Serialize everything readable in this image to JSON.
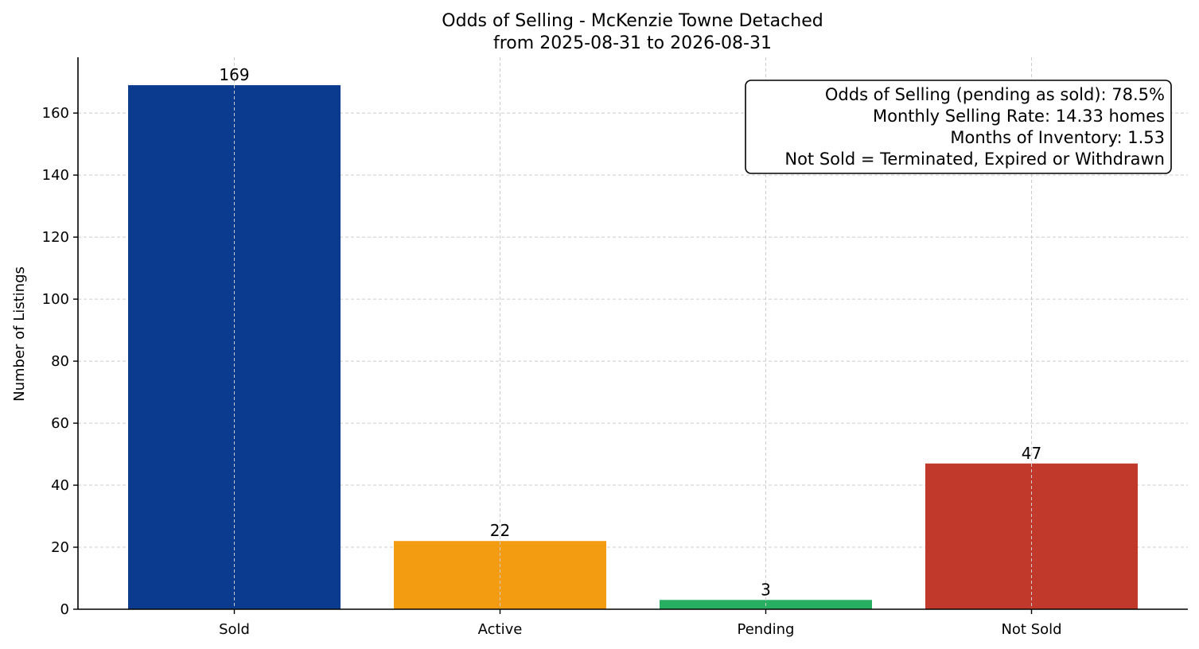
{
  "chart_data": {
    "type": "bar",
    "title": "Odds of Selling - McKenzie Towne Detached",
    "subtitle": "from 2025-08-31 to 2026-08-31",
    "xlabel": "",
    "ylabel": "Number of Listings",
    "categories": [
      "Sold",
      "Active",
      "Pending",
      "Not Sold"
    ],
    "values": [
      169,
      22,
      3,
      47
    ],
    "value_labels": [
      "169",
      "22",
      "3",
      "47"
    ],
    "colors": [
      "#0b3b8f",
      "#f39c12",
      "#27ae60",
      "#c0392b"
    ],
    "ylim": [
      0,
      178
    ],
    "yticks": [
      0,
      20,
      40,
      60,
      80,
      100,
      120,
      140,
      160
    ],
    "grid": true,
    "annotation_placement": "top-right",
    "annotation_lines": [
      "Odds of Selling (pending as sold): 78.5%",
      "Monthly Selling Rate: 14.33 homes",
      "Months of Inventory: 1.53",
      "Not Sold = Terminated, Expired or Withdrawn"
    ]
  }
}
